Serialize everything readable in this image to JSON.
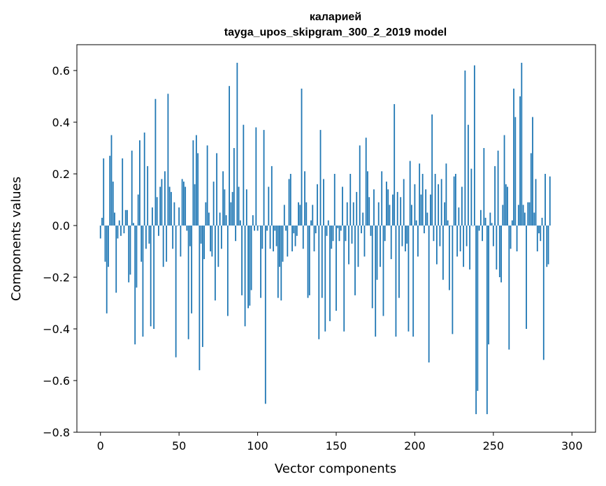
{
  "chart_data": {
    "type": "bar",
    "title_line1": "каларией",
    "title_line2": "tayga_upos_skipgram_300_2_2019 model",
    "xlabel": "Vector components",
    "ylabel": "Components values",
    "xlim": [
      -15,
      315
    ],
    "ylim": [
      -0.8,
      0.7
    ],
    "xticks": [
      0,
      50,
      100,
      150,
      200,
      250,
      300
    ],
    "xtick_labels": [
      "0",
      "50",
      "100",
      "150",
      "200",
      "250",
      "300"
    ],
    "yticks": [
      -0.8,
      -0.6,
      -0.4,
      -0.2,
      0.0,
      0.2,
      0.4,
      0.6
    ],
    "ytick_labels": [
      "−0.8",
      "−0.6",
      "−0.4",
      "−0.2",
      "0.0",
      "0.2",
      "0.4",
      "0.6"
    ],
    "grid": false,
    "bar_color": "#1f77b4",
    "values": [
      -0.05,
      0.03,
      0.26,
      -0.14,
      -0.34,
      -0.16,
      0.27,
      0.35,
      0.17,
      0.05,
      -0.26,
      -0.05,
      0.02,
      -0.04,
      0.26,
      -0.03,
      0.06,
      0.06,
      -0.22,
      -0.19,
      0.29,
      0.01,
      -0.46,
      -0.24,
      0.12,
      0.33,
      -0.14,
      -0.43,
      0.36,
      -0.09,
      0.23,
      -0.07,
      -0.39,
      0.07,
      -0.4,
      0.49,
      0.11,
      -0.04,
      0.15,
      0.18,
      -0.16,
      0.21,
      -0.14,
      0.51,
      0.15,
      0.13,
      -0.09,
      0.09,
      -0.51,
      0.0,
      0.07,
      -0.12,
      0.18,
      0.17,
      0.15,
      -0.02,
      -0.44,
      -0.08,
      -0.34,
      0.33,
      0.16,
      0.35,
      0.28,
      -0.56,
      -0.07,
      -0.47,
      -0.13,
      0.09,
      0.31,
      0.05,
      -0.1,
      -0.12,
      0.17,
      -0.29,
      0.28,
      -0.16,
      0.05,
      -0.09,
      0.21,
      0.14,
      0.04,
      -0.35,
      0.54,
      0.09,
      0.13,
      0.3,
      -0.06,
      0.63,
      0.15,
      0.02,
      -0.27,
      0.39,
      -0.39,
      0.14,
      -0.32,
      -0.31,
      -0.25,
      0.04,
      -0.02,
      0.38,
      -0.02,
      0.0,
      -0.28,
      -0.09,
      0.37,
      -0.69,
      -0.02,
      0.15,
      -0.09,
      0.23,
      -0.1,
      -0.02,
      -0.08,
      -0.28,
      -0.16,
      -0.29,
      -0.14,
      0.08,
      -0.02,
      -0.12,
      0.18,
      0.2,
      -0.1,
      -0.03,
      -0.08,
      -0.04,
      0.09,
      0.08,
      0.53,
      -0.09,
      0.21,
      0.09,
      -0.28,
      -0.27,
      0.02,
      0.08,
      -0.1,
      -0.03,
      0.16,
      -0.44,
      0.37,
      -0.28,
      0.18,
      -0.41,
      -0.04,
      0.02,
      -0.37,
      -0.09,
      -0.06,
      0.2,
      -0.33,
      -0.01,
      -0.06,
      -0.02,
      0.15,
      -0.41,
      -0.06,
      0.09,
      -0.15,
      0.2,
      -0.07,
      0.09,
      -0.27,
      0.13,
      -0.16,
      0.31,
      -0.03,
      0.05,
      -0.12,
      0.34,
      0.21,
      0.11,
      -0.04,
      -0.32,
      0.14,
      -0.43,
      -0.21,
      0.09,
      -0.16,
      0.21,
      -0.35,
      -0.06,
      0.17,
      0.14,
      0.08,
      -0.13,
      0.12,
      0.47,
      -0.43,
      0.13,
      -0.28,
      0.11,
      -0.08,
      0.18,
      -0.1,
      -0.07,
      -0.41,
      0.25,
      0.08,
      -0.43,
      0.16,
      0.02,
      -0.12,
      0.24,
      0.12,
      0.2,
      -0.03,
      0.14,
      0.05,
      -0.53,
      0.12,
      0.43,
      -0.06,
      0.2,
      -0.15,
      0.16,
      -0.08,
      0.18,
      -0.21,
      0.09,
      0.24,
      0.02,
      -0.25,
      0.0,
      -0.42,
      0.19,
      0.2,
      -0.12,
      0.07,
      -0.1,
      0.15,
      -0.16,
      0.6,
      -0.08,
      0.39,
      -0.17,
      0.22,
      0.0,
      0.62,
      -0.73,
      -0.64,
      -0.02,
      0.06,
      -0.06,
      0.3,
      0.03,
      -0.73,
      -0.46,
      0.05,
      0.01,
      -0.08,
      0.23,
      -0.17,
      0.29,
      -0.2,
      -0.22,
      0.08,
      0.35,
      0.16,
      0.15,
      -0.48,
      -0.09,
      0.02,
      0.53,
      0.42,
      -0.1,
      0.08,
      0.5,
      0.63,
      0.08,
      0.05,
      -0.4,
      0.09,
      0.09,
      0.28,
      0.42,
      0.05,
      0.18,
      -0.1,
      -0.03,
      -0.06,
      0.03,
      -0.52,
      0.2,
      -0.16,
      -0.15,
      0.19
    ]
  }
}
